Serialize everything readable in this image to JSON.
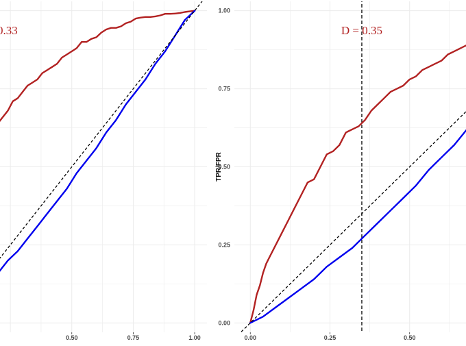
{
  "chart_data": [
    {
      "type": "line",
      "panel": "left",
      "title": "",
      "xlabel": "",
      "ylabel": "",
      "xlim": [
        0.18,
        1.05
      ],
      "ylim": [
        -0.03,
        1.03
      ],
      "xticks": [
        "0.50",
        "0.75",
        "1.00"
      ],
      "xtick_values": [
        0.5,
        0.75,
        1.0
      ],
      "yticks": [],
      "annotation": {
        "text": "0.33",
        "x": 0.19,
        "y": 0.925,
        "color": "#b22222"
      },
      "colors": {
        "tpr": "#b22222",
        "fpr": "#0000ee",
        "diagonal": "#000000"
      },
      "series": [
        {
          "key": "tpr",
          "x": [
            0.18,
            0.2,
            0.22,
            0.24,
            0.26,
            0.28,
            0.3,
            0.32,
            0.34,
            0.36,
            0.38,
            0.4,
            0.42,
            0.44,
            0.46,
            0.48,
            0.5,
            0.52,
            0.54,
            0.56,
            0.58,
            0.6,
            0.62,
            0.64,
            0.66,
            0.68,
            0.7,
            0.72,
            0.74,
            0.76,
            0.78,
            0.8,
            0.82,
            0.84,
            0.86,
            0.88,
            0.9,
            0.92,
            0.94,
            0.96,
            0.98,
            1.0
          ],
          "y": [
            0.62,
            0.64,
            0.66,
            0.68,
            0.71,
            0.72,
            0.74,
            0.76,
            0.77,
            0.78,
            0.8,
            0.81,
            0.82,
            0.83,
            0.85,
            0.86,
            0.87,
            0.88,
            0.9,
            0.9,
            0.91,
            0.915,
            0.93,
            0.94,
            0.945,
            0.945,
            0.95,
            0.96,
            0.965,
            0.975,
            0.978,
            0.98,
            0.98,
            0.982,
            0.985,
            0.99,
            0.99,
            0.991,
            0.993,
            0.996,
            0.998,
            1.0
          ]
        },
        {
          "key": "fpr",
          "x": [
            0.18,
            0.2,
            0.24,
            0.28,
            0.32,
            0.36,
            0.4,
            0.44,
            0.48,
            0.52,
            0.56,
            0.6,
            0.64,
            0.68,
            0.72,
            0.76,
            0.8,
            0.84,
            0.88,
            0.92,
            0.96,
            1.0
          ],
          "y": [
            0.14,
            0.16,
            0.2,
            0.23,
            0.27,
            0.31,
            0.35,
            0.39,
            0.43,
            0.48,
            0.52,
            0.56,
            0.61,
            0.65,
            0.7,
            0.74,
            0.78,
            0.83,
            0.87,
            0.92,
            0.97,
            1.0
          ]
        },
        {
          "key": "diagonal",
          "x": [
            0.18,
            1.05
          ],
          "y": [
            0.18,
            1.05
          ]
        }
      ]
    },
    {
      "type": "line",
      "panel": "right",
      "title": "",
      "xlabel": "",
      "ylabel": "TPR/FPR",
      "xlim": [
        -0.05,
        0.72
      ],
      "ylim": [
        -0.03,
        1.03
      ],
      "xticks": [
        "0.00",
        "0.25",
        "0.50"
      ],
      "xtick_values": [
        0.0,
        0.25,
        0.5
      ],
      "yticks": [
        "0.00",
        "0.25",
        "0.50",
        "0.75",
        "1.00"
      ],
      "ytick_values": [
        0.0,
        0.25,
        0.5,
        0.75,
        1.0
      ],
      "vline_x": 0.35,
      "annotation": {
        "text": "D = 0.35",
        "x": 0.35,
        "y": 0.925,
        "color": "#b22222"
      },
      "colors": {
        "tpr": "#b22222",
        "fpr": "#0000ee",
        "diagonal": "#000000"
      },
      "series": [
        {
          "key": "tpr",
          "x": [
            0.0,
            0.01,
            0.02,
            0.03,
            0.04,
            0.05,
            0.06,
            0.08,
            0.1,
            0.12,
            0.14,
            0.16,
            0.18,
            0.2,
            0.22,
            0.24,
            0.26,
            0.28,
            0.3,
            0.32,
            0.34,
            0.36,
            0.38,
            0.4,
            0.42,
            0.44,
            0.46,
            0.48,
            0.5,
            0.52,
            0.54,
            0.56,
            0.58,
            0.6,
            0.62,
            0.64,
            0.66,
            0.68,
            0.7,
            0.72
          ],
          "y": [
            0.0,
            0.04,
            0.09,
            0.12,
            0.16,
            0.19,
            0.21,
            0.25,
            0.29,
            0.33,
            0.37,
            0.41,
            0.45,
            0.46,
            0.5,
            0.54,
            0.55,
            0.57,
            0.61,
            0.62,
            0.63,
            0.65,
            0.68,
            0.7,
            0.72,
            0.74,
            0.75,
            0.76,
            0.78,
            0.79,
            0.81,
            0.82,
            0.83,
            0.84,
            0.86,
            0.87,
            0.88,
            0.89,
            0.9,
            0.91
          ]
        },
        {
          "key": "fpr",
          "x": [
            0.0,
            0.04,
            0.08,
            0.12,
            0.16,
            0.2,
            0.24,
            0.28,
            0.32,
            0.36,
            0.4,
            0.44,
            0.48,
            0.52,
            0.56,
            0.6,
            0.64,
            0.68,
            0.72
          ],
          "y": [
            0.0,
            0.02,
            0.05,
            0.08,
            0.11,
            0.14,
            0.18,
            0.21,
            0.24,
            0.28,
            0.32,
            0.36,
            0.4,
            0.44,
            0.49,
            0.53,
            0.57,
            0.62,
            0.69
          ]
        },
        {
          "key": "diagonal",
          "x": [
            -0.05,
            0.72
          ],
          "y": [
            -0.05,
            0.72
          ]
        }
      ]
    }
  ]
}
